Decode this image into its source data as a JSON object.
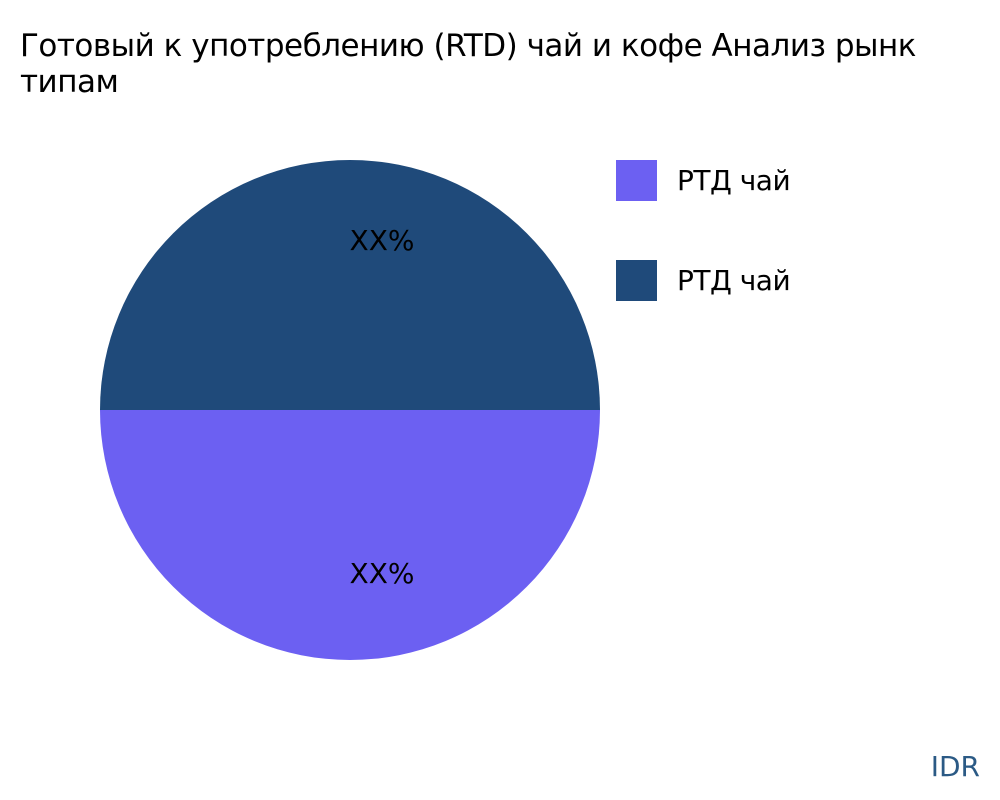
{
  "chart_data": {
    "type": "pie",
    "title_lines": [
      "Готовый к употреблению (RTD) чай и кофе Анализ рынк",
      "типам"
    ],
    "slices": [
      {
        "label": "РТД чай",
        "value": 50,
        "display_label": "XX%",
        "color": "#6c60f2"
      },
      {
        "label": "РТД чай",
        "value": 50,
        "display_label": "XX%",
        "color": "#1f4a7a"
      }
    ],
    "legend_placement": "top-right"
  },
  "watermark": "IDR"
}
